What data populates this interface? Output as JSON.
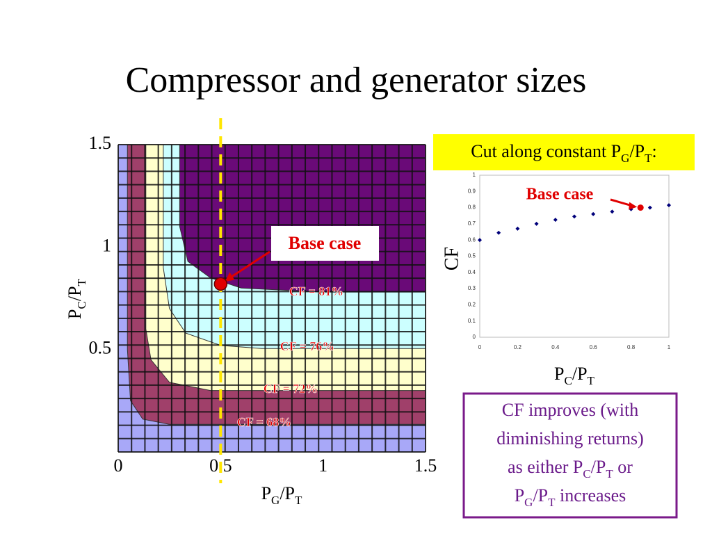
{
  "title": "Compressor and generator sizes",
  "chart_data": [
    {
      "type": "contour",
      "xlabel": [
        "P",
        "G",
        "/P",
        "T"
      ],
      "ylabel": [
        "P",
        "C",
        "/P",
        "T"
      ],
      "xlim": [
        0,
        1.5
      ],
      "ylim": [
        0,
        1.5
      ],
      "xticks": [
        0,
        0.5,
        1,
        1.5
      ],
      "yticks": [
        0.5,
        1,
        1.5
      ],
      "background": "#a8a8f8",
      "mesh": true,
      "contours": [
        {
          "label": "CF = 68%",
          "color": "#a0406a",
          "x": [
            0.045,
            0.045,
            0.06,
            0.12,
            0.25,
            1.5
          ],
          "y": [
            1.5,
            0.5,
            0.25,
            0.16,
            0.135,
            0.135
          ]
        },
        {
          "label": "CF = 72%",
          "color": "#ffffcc",
          "x": [
            0.135,
            0.135,
            0.16,
            0.25,
            0.45,
            1.5
          ],
          "y": [
            1.5,
            0.6,
            0.45,
            0.34,
            0.3,
            0.3
          ]
        },
        {
          "label": "CF = 76%",
          "color": "#ccffff",
          "x": [
            0.22,
            0.22,
            0.25,
            0.33,
            0.5,
            0.7,
            1.5
          ],
          "y": [
            1.5,
            0.9,
            0.7,
            0.58,
            0.52,
            0.505,
            0.505
          ]
        },
        {
          "label": "CF = 81%",
          "color": "#6a0a78",
          "x": [
            0.3,
            0.3,
            0.34,
            0.45,
            0.6,
            1.0,
            1.5
          ],
          "y": [
            1.5,
            1.1,
            0.93,
            0.85,
            0.8,
            0.78,
            0.78
          ]
        }
      ],
      "cut": {
        "x": 0.5,
        "color": "#ffe600"
      },
      "marker": {
        "label": "Base case",
        "x": 0.5,
        "y": 0.82,
        "color": "#e00000"
      }
    },
    {
      "type": "scatter",
      "title": [
        "Cut along constant P",
        "G",
        "/P",
        "T",
        ":"
      ],
      "xlabel": [
        "P",
        "C",
        "/P",
        "T"
      ],
      "ylabel": "CF",
      "x": [
        0,
        0.1,
        0.2,
        0.3,
        0.4,
        0.5,
        0.6,
        0.7,
        0.8,
        0.9,
        1
      ],
      "values": [
        0.6,
        0.645,
        0.67,
        0.7,
        0.725,
        0.745,
        0.76,
        0.775,
        0.79,
        0.8,
        0.815
      ],
      "color": "#00007a",
      "xlim": [
        0,
        1
      ],
      "ylim": [
        0,
        1
      ],
      "xticks": [
        0,
        0.2,
        0.4,
        0.6,
        0.8,
        1
      ],
      "yticks": [
        0,
        0.1,
        0.2,
        0.3,
        0.4,
        0.5,
        0.6,
        0.7,
        0.8,
        0.9,
        1
      ],
      "marker": {
        "label": "Base case",
        "x": 0.85,
        "y": 0.8,
        "color": "#e00000"
      }
    }
  ],
  "note": [
    [
      "CF improves (with"
    ],
    [
      "diminishing returns)"
    ],
    [
      "as either P",
      "C",
      "/P",
      "T",
      " or"
    ],
    [
      "P",
      "G",
      "/P",
      "T",
      " increases"
    ]
  ]
}
